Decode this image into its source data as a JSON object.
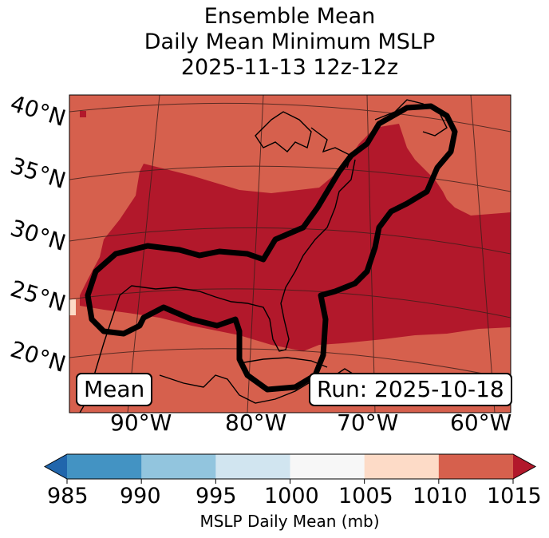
{
  "title": {
    "line1": "Ensemble Mean",
    "line2": "Daily Mean Minimum MSLP",
    "line3": "2025-11-13 12z-12z"
  },
  "lat_labels": [
    "40°N",
    "35°N",
    "30°N",
    "25°N",
    "20°N"
  ],
  "lon_labels": [
    "90°W",
    "80°W",
    "70°W",
    "60°W"
  ],
  "mean_box": "Mean",
  "run_box": "Run: 2025-10-18",
  "colorbar": {
    "title": "MSLP Daily Mean (mb)",
    "ticks": [
      "985",
      "990",
      "995",
      "1000",
      "1005",
      "1010",
      "1015"
    ],
    "colors": [
      "#2166ac",
      "#4393c3",
      "#92c5de",
      "#d1e5f0",
      "#f7f7f7",
      "#fddbc7",
      "#d6604d",
      "#b2182b"
    ]
  },
  "map_colors": {
    "field_1010_1015": "#d6604d",
    "field_above_1015": "#b2182b",
    "field_1005_1010": "#fddbc7"
  }
}
